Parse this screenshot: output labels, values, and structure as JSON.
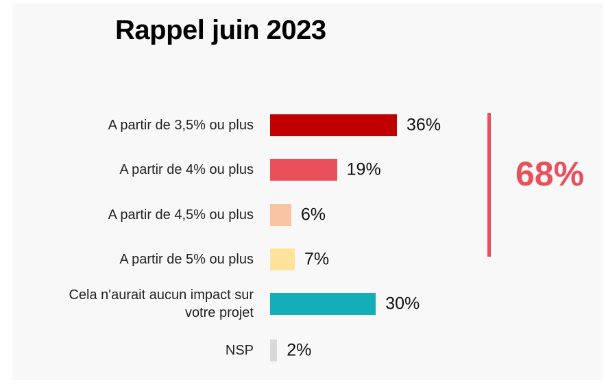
{
  "chart_data": {
    "type": "bar",
    "orientation": "horizontal",
    "title": "Rappel juin 2023",
    "categories": [
      "A partir de 3,5% ou plus",
      "A partir de 4% ou plus",
      "A partir de 4,5% ou plus",
      "A partir de 5% ou plus",
      "Cela n'aurait aucun impact sur votre projet",
      "NSP"
    ],
    "values": [
      36,
      19,
      6,
      7,
      30,
      2
    ],
    "value_labels": [
      "36%",
      "19%",
      "6%",
      "7%",
      "30%",
      "2%"
    ],
    "colors": [
      "#c00000",
      "#e8505b",
      "#f8c4a4",
      "#fde39a",
      "#13aeb8",
      "#d9d9d9"
    ],
    "annotation": {
      "text": "68%",
      "color": "#e8505b"
    }
  }
}
